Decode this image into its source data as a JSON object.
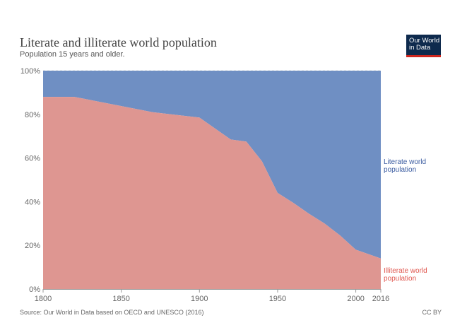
{
  "header": {
    "title": "Literate and illiterate world population",
    "subtitle": "Population 15 years and older."
  },
  "logo": {
    "line1": "Our World",
    "line2": "in Data"
  },
  "footer": {
    "source": "Source: Our World in Data based on OECD and UNESCO (2016)",
    "license": "CC BY"
  },
  "colors": {
    "literate": "#6f8fc3",
    "illiterate": "#de9691",
    "literate_label": "#3a5ba0",
    "illiterate_label": "#e0574f"
  },
  "chart_data": {
    "type": "area",
    "stacked": true,
    "x": [
      1800,
      1820,
      1870,
      1900,
      1910,
      1920,
      1930,
      1940,
      1950,
      1960,
      1970,
      1980,
      1990,
      2000,
      2016
    ],
    "series": [
      {
        "name": "Illiterate world population",
        "label_lines": [
          "Illiterate world",
          "population"
        ],
        "values": [
          88,
          88,
          81,
          78.5,
          73.5,
          68.5,
          67.5,
          58.5,
          44,
          39.5,
          34.5,
          30,
          24.5,
          18,
          14
        ]
      },
      {
        "name": "Literate world population",
        "label_lines": [
          "Literate world",
          "population"
        ],
        "values": [
          12,
          12,
          19,
          21.5,
          26.5,
          31.5,
          32.5,
          41.5,
          56,
          60.5,
          65.5,
          70,
          75.5,
          82,
          86
        ]
      }
    ],
    "xticks": [
      1800,
      1850,
      1900,
      1950,
      2000,
      2016
    ],
    "yticks": [
      "0%",
      "20%",
      "40%",
      "60%",
      "80%",
      "100%"
    ],
    "ylim": [
      0,
      100
    ],
    "xlim": [
      1800,
      2016
    ]
  }
}
